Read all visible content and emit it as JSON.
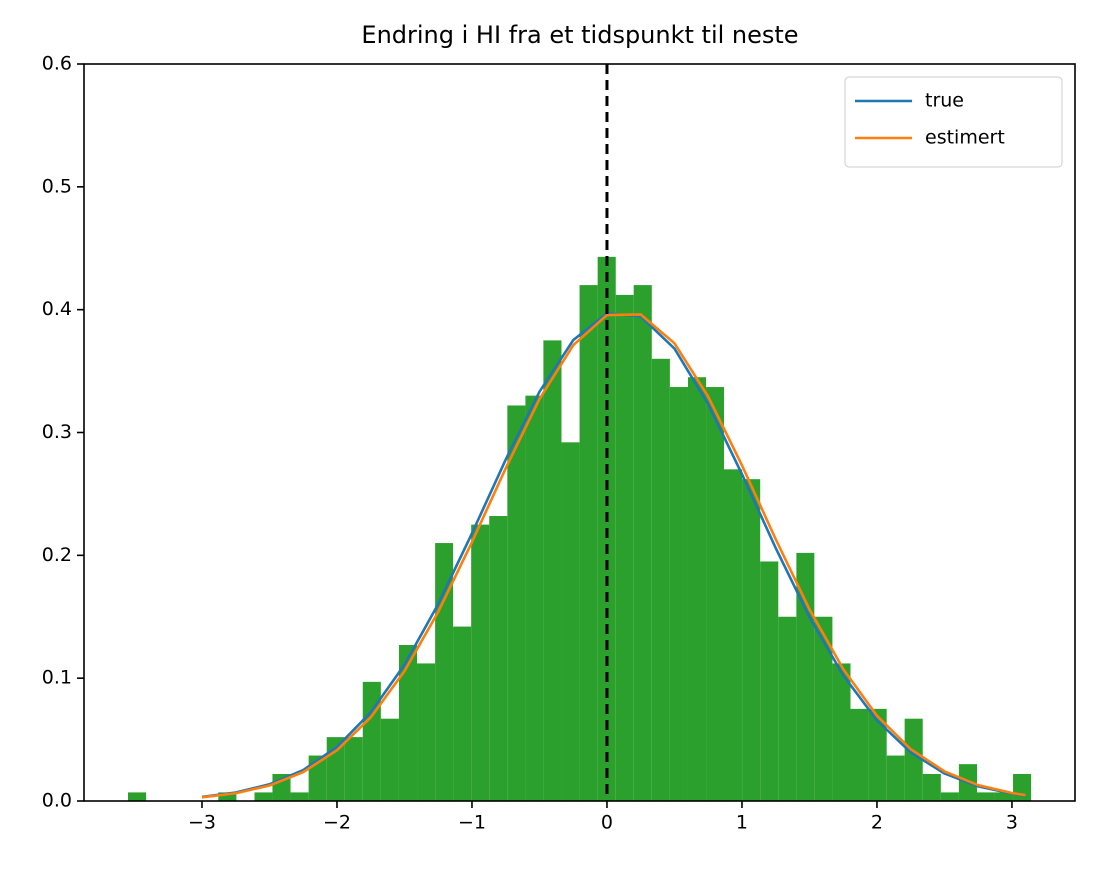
{
  "chart_data": {
    "type": "histogram",
    "title": "Endring i HI fra et tidspunkt til neste",
    "bins": [
      -3.548,
      -3.414,
      -3.28,
      -3.147,
      -3.013,
      -2.879,
      -2.745,
      -2.611,
      -2.478,
      -2.344,
      -2.21,
      -2.076,
      -1.942,
      -1.809,
      -1.675,
      -1.541,
      -1.407,
      -1.273,
      -1.14,
      -1.006,
      -0.872,
      -0.738,
      -0.604,
      -0.471,
      -0.337,
      -0.203,
      -0.069,
      0.065,
      0.198,
      0.332,
      0.466,
      0.6,
      0.734,
      0.867,
      1.001,
      1.135,
      1.269,
      1.403,
      1.536,
      1.67,
      1.804,
      1.938,
      2.072,
      2.205,
      2.339,
      2.473,
      2.607,
      2.741,
      2.874,
      3.008,
      3.142
    ],
    "values": [
      0.007,
      0,
      0,
      0,
      0,
      0.007,
      0,
      0.007,
      0.022,
      0.007,
      0.037,
      0.052,
      0.052,
      0.097,
      0.067,
      0.127,
      0.112,
      0.21,
      0.142,
      0.225,
      0.232,
      0.322,
      0.33,
      0.375,
      0.292,
      0.42,
      0.443,
      0.412,
      0.42,
      0.36,
      0.337,
      0.345,
      0.337,
      0.27,
      0.262,
      0.195,
      0.15,
      0.202,
      0.15,
      0.112,
      0.075,
      0.075,
      0.037,
      0.067,
      0.022,
      0.007,
      0.03,
      0.007,
      0.007,
      0.022
    ],
    "color": "#2ca02c",
    "series": [
      {
        "name": "true",
        "color": "#1f77b4",
        "x": [
          -3,
          -2.75,
          -2.5,
          -2.25,
          -2,
          -1.75,
          -1.5,
          -1.25,
          -1,
          -0.75,
          -0.5,
          -0.25,
          0,
          0.25,
          0.5,
          0.75,
          1,
          1.25,
          1.5,
          1.75,
          2,
          2.25,
          2.5,
          2.75,
          3,
          3.1
        ],
        "values": [
          0.0033,
          0.0069,
          0.0136,
          0.0252,
          0.044,
          0.0721,
          0.1109,
          0.1604,
          0.2179,
          0.278,
          0.3332,
          0.3752,
          0.397,
          0.3945,
          0.3683,
          0.323,
          0.2661,
          0.2059,
          0.1497,
          0.1023,
          0.0656,
          0.0396,
          0.0224,
          0.0119,
          0.006,
          0.0044
        ]
      },
      {
        "name": "estimert",
        "color": "#ff7f0e",
        "x": [
          -3,
          -2.75,
          -2.5,
          -2.25,
          -2,
          -1.75,
          -1.5,
          -1.25,
          -1,
          -0.75,
          -0.5,
          -0.25,
          0,
          0.25,
          0.5,
          0.75,
          1,
          1.25,
          1.5,
          1.75,
          2,
          2.25,
          2.5,
          2.75,
          3,
          3.1
        ],
        "values": [
          0.003,
          0.0063,
          0.0126,
          0.0235,
          0.0413,
          0.0681,
          0.1057,
          0.154,
          0.2108,
          0.2709,
          0.3272,
          0.3711,
          0.3956,
          0.3961,
          0.3726,
          0.3292,
          0.2733,
          0.2131,
          0.1561,
          0.1074,
          0.0694,
          0.0422,
          0.0241,
          0.0129,
          0.0065,
          0.0048
        ]
      }
    ],
    "vline": {
      "x": 0,
      "color": "#000000",
      "style": "dashed"
    },
    "xlim": [
      -3.874,
      3.467
    ],
    "ylim": [
      0,
      0.6
    ],
    "xticks": [
      {
        "value": -3,
        "label": "−3"
      },
      {
        "value": -2,
        "label": "−2"
      },
      {
        "value": -1,
        "label": "−1"
      },
      0,
      1,
      2,
      3
    ],
    "yticks": [
      {
        "value": 0,
        "label": "0.0"
      },
      0.1,
      0.2,
      0.3,
      0.4,
      0.5,
      0.6
    ],
    "legend": "upper right"
  }
}
